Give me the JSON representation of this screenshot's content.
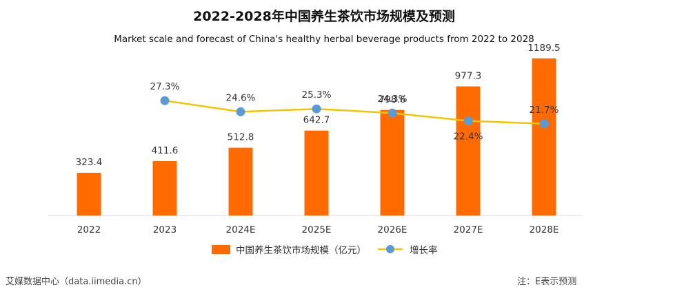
{
  "chart_data": {
    "type": "bar",
    "title": "2022-2028年中国养生茶饮市场规模及预测",
    "subtitle": "Market scale and forecast of China's healthy herbal beverage products from 2022 to 2028",
    "categories": [
      "2022",
      "2023",
      "2024E",
      "2025E",
      "2026E",
      "2027E",
      "2028E"
    ],
    "series": [
      {
        "name": "中国养生茶饮市场规模（亿元）",
        "kind": "bar",
        "color": "#FF6B00",
        "values": [
          323.4,
          411.6,
          512.8,
          642.7,
          798.6,
          977.3,
          1189.5
        ],
        "labels": [
          "323.4",
          "411.6",
          "512.8",
          "642.7",
          "798.6",
          "977.3",
          "1189.5"
        ]
      },
      {
        "name": "增长率",
        "kind": "line",
        "line_color": "#F2C500",
        "marker_color": "#5B9BD5",
        "values": [
          null,
          27.3,
          24.6,
          25.3,
          24.3,
          22.4,
          21.7
        ],
        "labels": [
          "",
          "27.3%",
          "24.6%",
          "25.3%",
          "24.3%",
          "22.4%",
          "21.7%"
        ]
      }
    ],
    "ylim": [
      0,
      1230
    ],
    "y2lim": [
      0,
      40
    ],
    "grid": false,
    "legend": "bottom-center"
  },
  "footer": {
    "source": "艾媒数据中心（data.iimedia.cn）",
    "note": "注：E表示预测"
  }
}
